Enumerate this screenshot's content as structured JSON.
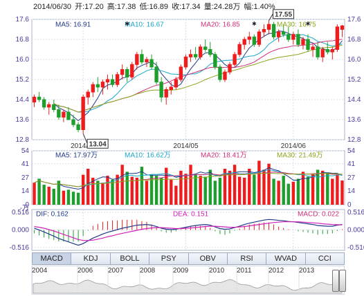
{
  "info": {
    "date": "2014/06/30",
    "open": "开:17.20",
    "high": "高:17.38",
    "low": "低:16.89",
    "close": "收:17.34",
    "vol": "量:24.28万",
    "amp": "幅:1.40%"
  },
  "price_panel": {
    "ma_legend": [
      {
        "text": "MA5: 16.91",
        "color": "#1f3a8a"
      },
      {
        "text": "MA10: 16.67",
        "color": "#1aa7c9"
      },
      {
        "text": "MA20: 16.85",
        "color": "#d0307a"
      },
      {
        "text": "MA30: 16.75",
        "color": "#8aa51b"
      }
    ],
    "callout_high": "17.55",
    "callout_low": "13.04",
    "x_labels": [
      "2014/04",
      "2014/05",
      "2014/06"
    ]
  },
  "volume_panel": {
    "ma_legend": [
      {
        "text": "MA5: 17.97万",
        "color": "#1f3a8a"
      },
      {
        "text": "MA10: 16.62万",
        "color": "#1aa7c9"
      },
      {
        "text": "MA20: 18.41万",
        "color": "#d0307a"
      },
      {
        "text": "MA30: 21.49万",
        "color": "#8aa51b"
      }
    ],
    "unit": "-万"
  },
  "macd_panel": {
    "legend": [
      {
        "text": "DIF: 0.162",
        "color": "#1f3a8a"
      },
      {
        "text": "DEA: 0.151",
        "color": "#d021b9"
      },
      {
        "text": "MACD: 0.022",
        "color": "#d0307a"
      }
    ]
  },
  "tabs": [
    "MACD",
    "KDJ",
    "BOLL",
    "PSY",
    "OBV",
    "RSI",
    "WVAD",
    "CCI"
  ],
  "active_tab": "MACD",
  "years": [
    "2004",
    "2006",
    "2007",
    "2008",
    "2009",
    "2010",
    "2011",
    "2012",
    "2013"
  ],
  "colors": {
    "up": "#ee1c1c",
    "down": "#1e9e2b",
    "grid": "#d7dde8",
    "axis": "#aab4c8",
    "label": "#4a3aa0"
  },
  "chart_data": [
    {
      "type": "candlestick",
      "title": "",
      "yticks": [
        12.8,
        13.6,
        14.4,
        15.2,
        16.0,
        16.8,
        17.6
      ],
      "ylim": [
        12.8,
        17.6
      ],
      "x_labels": [
        "2014/04",
        "2014/05",
        "2014/06"
      ],
      "ohlc": [
        [
          14.3,
          14.6,
          14.1,
          14.5
        ],
        [
          14.5,
          14.7,
          14.3,
          14.4
        ],
        [
          14.4,
          14.5,
          14.0,
          14.1
        ],
        [
          14.1,
          14.3,
          13.8,
          14.2
        ],
        [
          14.2,
          14.4,
          13.9,
          14.0
        ],
        [
          14.0,
          14.2,
          13.6,
          13.7
        ],
        [
          13.7,
          14.0,
          13.5,
          13.9
        ],
        [
          13.9,
          14.1,
          13.6,
          13.6
        ],
        [
          13.6,
          13.8,
          13.3,
          13.4
        ],
        [
          13.4,
          13.5,
          13.1,
          13.2
        ],
        [
          13.2,
          14.6,
          13.04,
          14.5
        ],
        [
          14.5,
          14.8,
          14.2,
          14.7
        ],
        [
          14.7,
          15.1,
          14.5,
          15.0
        ],
        [
          15.0,
          15.3,
          14.7,
          14.9
        ],
        [
          14.9,
          15.2,
          14.6,
          15.1
        ],
        [
          15.1,
          15.4,
          14.8,
          15.2
        ],
        [
          15.2,
          15.4,
          14.9,
          15.0
        ],
        [
          15.0,
          15.5,
          14.9,
          15.4
        ],
        [
          15.4,
          15.8,
          15.2,
          15.6
        ],
        [
          15.6,
          15.7,
          15.1,
          15.3
        ],
        [
          15.3,
          15.9,
          15.2,
          15.8
        ],
        [
          15.8,
          16.3,
          15.6,
          16.2
        ],
        [
          16.2,
          16.4,
          15.8,
          15.9
        ],
        [
          15.9,
          16.1,
          15.7,
          16.0
        ],
        [
          16.0,
          16.2,
          15.6,
          15.7
        ],
        [
          15.7,
          15.9,
          15.0,
          15.1
        ],
        [
          15.1,
          15.3,
          14.3,
          14.5
        ],
        [
          14.5,
          14.9,
          14.2,
          14.8
        ],
        [
          14.8,
          15.1,
          14.6,
          14.9
        ],
        [
          14.9,
          15.3,
          14.8,
          15.2
        ],
        [
          15.2,
          15.8,
          15.1,
          15.7
        ],
        [
          15.7,
          16.2,
          15.6,
          16.1
        ],
        [
          16.1,
          16.4,
          15.9,
          16.2
        ],
        [
          16.2,
          16.5,
          16.0,
          16.1
        ],
        [
          16.1,
          16.6,
          16.0,
          16.5
        ],
        [
          16.5,
          16.8,
          16.3,
          16.4
        ],
        [
          16.4,
          16.7,
          16.1,
          16.2
        ],
        [
          16.2,
          16.3,
          15.6,
          15.7
        ],
        [
          15.7,
          15.8,
          15.1,
          15.2
        ],
        [
          15.2,
          15.6,
          15.1,
          15.5
        ],
        [
          15.5,
          15.9,
          15.4,
          15.8
        ],
        [
          15.8,
          16.3,
          15.7,
          16.2
        ],
        [
          16.2,
          16.7,
          16.1,
          16.6
        ],
        [
          16.6,
          16.9,
          16.4,
          16.8
        ],
        [
          16.8,
          17.1,
          16.6,
          16.9
        ],
        [
          16.9,
          17.0,
          16.5,
          16.6
        ],
        [
          16.6,
          17.2,
          16.5,
          17.1
        ],
        [
          17.1,
          17.4,
          16.9,
          17.2
        ],
        [
          17.2,
          17.55,
          17.0,
          17.4
        ],
        [
          17.4,
          17.5,
          16.8,
          16.9
        ],
        [
          16.9,
          17.2,
          16.7,
          17.1
        ],
        [
          17.1,
          17.4,
          16.9,
          17.0
        ],
        [
          17.0,
          17.3,
          16.7,
          16.8
        ],
        [
          16.8,
          17.1,
          16.6,
          17.0
        ],
        [
          17.0,
          17.2,
          16.5,
          16.6
        ],
        [
          16.6,
          16.9,
          16.4,
          16.8
        ],
        [
          16.8,
          17.0,
          16.3,
          16.4
        ],
        [
          16.4,
          16.6,
          16.1,
          16.5
        ],
        [
          16.5,
          16.7,
          16.0,
          16.1
        ],
        [
          16.1,
          16.5,
          15.9,
          16.4
        ],
        [
          16.4,
          16.7,
          16.2,
          16.3
        ],
        [
          16.3,
          16.5,
          16.0,
          16.4
        ],
        [
          16.4,
          17.4,
          16.3,
          17.3
        ],
        [
          17.2,
          17.38,
          16.89,
          17.34
        ]
      ]
    },
    {
      "type": "bar",
      "title": "",
      "yticks": [
        0,
        14,
        27,
        41,
        54
      ],
      "ylim": [
        0,
        54
      ],
      "values": [
        22,
        26,
        20,
        18,
        16,
        24,
        14,
        15,
        13,
        12,
        30,
        36,
        27,
        24,
        22,
        29,
        25,
        30,
        40,
        33,
        28,
        27,
        38,
        24,
        30,
        29,
        27,
        37,
        25,
        19,
        34,
        31,
        40,
        30,
        29,
        28,
        35,
        24,
        27,
        36,
        34,
        40,
        28,
        27,
        36,
        30,
        44,
        35,
        41,
        26,
        24,
        29,
        21,
        23,
        26,
        33,
        28,
        31,
        35,
        34,
        32,
        26,
        30,
        24.28
      ]
    },
    {
      "type": "line",
      "title": "",
      "yticks": [
        -0.516,
        0,
        0.516
      ],
      "ylim": [
        -0.6,
        0.6
      ],
      "dif": [
        0.05,
        0.0,
        -0.06,
        -0.12,
        -0.18,
        -0.25,
        -0.3,
        -0.35,
        -0.4,
        -0.45,
        -0.4,
        -0.32,
        -0.24,
        -0.18,
        -0.12,
        -0.07,
        -0.03,
        0.01,
        0.05,
        0.08,
        0.11,
        0.14,
        0.15,
        0.16,
        0.14,
        0.1,
        0.05,
        0.02,
        0.01,
        0.02,
        0.05,
        0.08,
        0.11,
        0.13,
        0.15,
        0.16,
        0.14,
        0.09,
        0.04,
        0.02,
        0.03,
        0.07,
        0.11,
        0.16,
        0.2,
        0.23,
        0.26,
        0.29,
        0.31,
        0.3,
        0.28,
        0.27,
        0.25,
        0.24,
        0.22,
        0.2,
        0.18,
        0.16,
        0.13,
        0.12,
        0.11,
        0.11,
        0.14,
        0.162
      ],
      "dea": [
        0.1,
        0.08,
        0.05,
        0.01,
        -0.03,
        -0.08,
        -0.13,
        -0.18,
        -0.23,
        -0.28,
        -0.31,
        -0.31,
        -0.3,
        -0.27,
        -0.24,
        -0.2,
        -0.17,
        -0.13,
        -0.1,
        -0.07,
        -0.04,
        -0.01,
        0.02,
        0.04,
        0.06,
        0.07,
        0.07,
        0.06,
        0.05,
        0.04,
        0.04,
        0.05,
        0.06,
        0.07,
        0.09,
        0.1,
        0.11,
        0.11,
        0.1,
        0.09,
        0.08,
        0.08,
        0.09,
        0.1,
        0.12,
        0.14,
        0.16,
        0.18,
        0.2,
        0.22,
        0.23,
        0.24,
        0.24,
        0.24,
        0.24,
        0.23,
        0.22,
        0.21,
        0.2,
        0.18,
        0.17,
        0.16,
        0.155,
        0.151
      ]
    }
  ]
}
